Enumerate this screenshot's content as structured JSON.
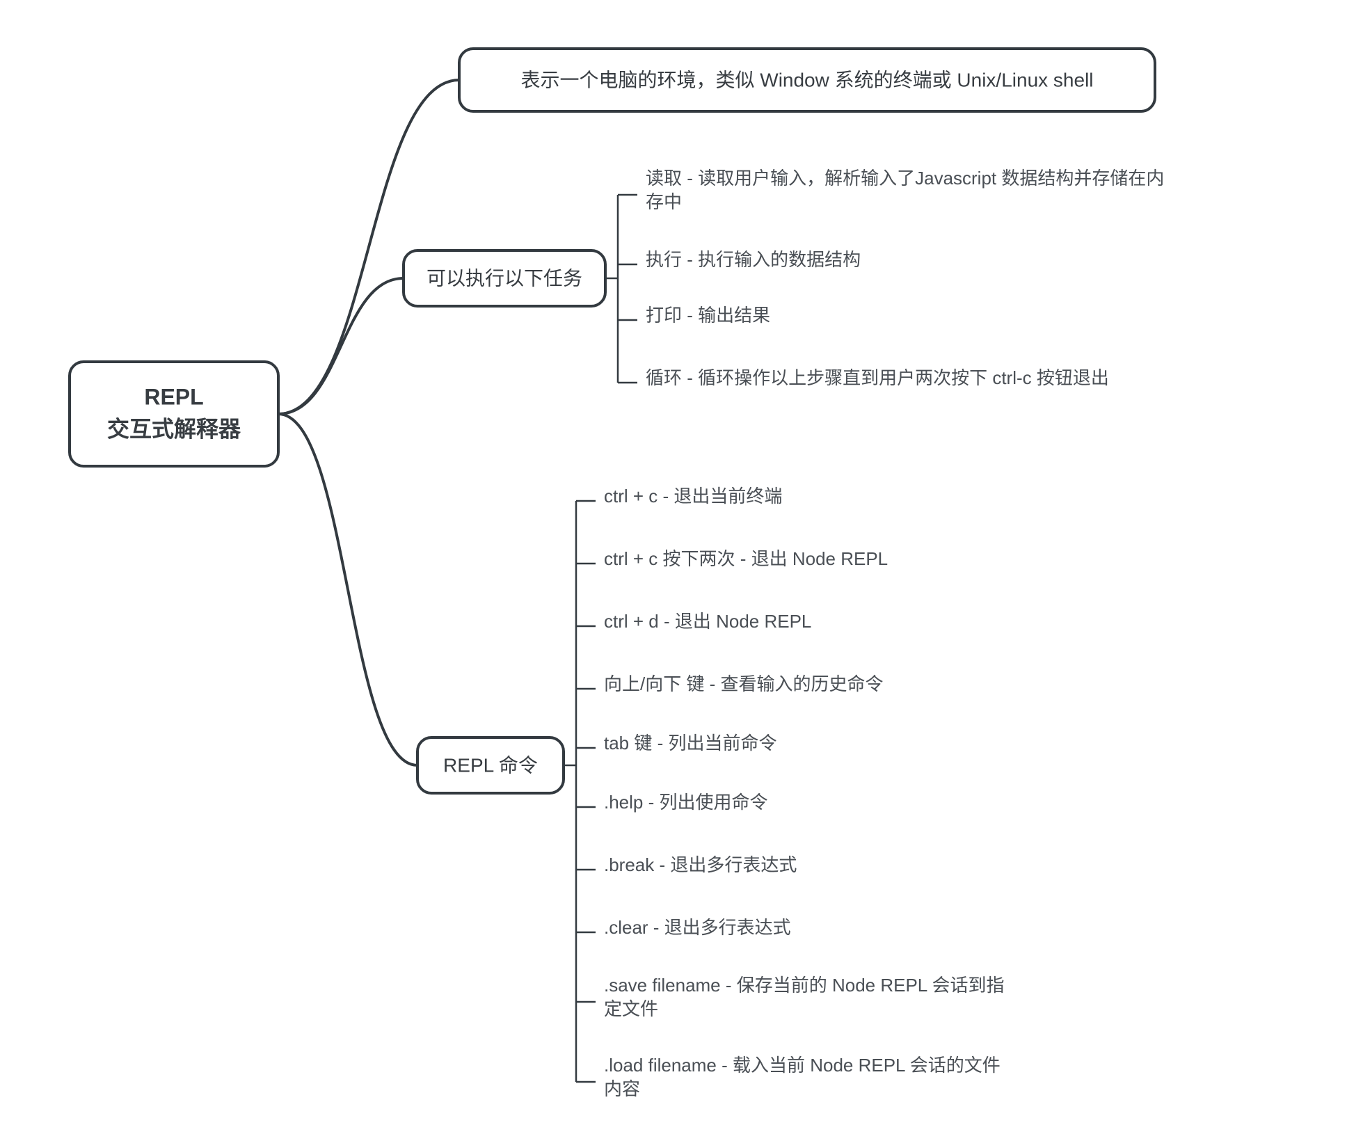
{
  "diagram": {
    "type": "tree",
    "background_color": "#ffffff",
    "node_stroke_color": "#333a40",
    "node_fill_color": "#ffffff",
    "edge_color": "#333a40",
    "bracket_color": "#333a40",
    "text_color": "#383d42",
    "leaf_text_color": "#4a4f55",
    "root_fontsize": 32,
    "root_fontweight": "700",
    "branch_fontsize": 28,
    "leaf_fontsize": 26,
    "node_border_radius": 20,
    "node_stroke_width": 4,
    "edge_stroke_width": 4,
    "root": {
      "line1": "REPL",
      "line2": "交互式解释器"
    },
    "branches": [
      {
        "id": "env",
        "label": "表示一个电脑的环境，类似 Window 系统的终端或 Unix/Linux shell",
        "leaves": []
      },
      {
        "id": "tasks",
        "label": "可以执行以下任务",
        "leaves": [
          "读取 - 读取用户输入，解析输入了Javascript 数据结构并存储在内存中",
          "执行 - 执行输入的数据结构",
          "打印 - 输出结果",
          "循环 - 循环操作以上步骤直到用户两次按下 ctrl-c 按钮退出"
        ]
      },
      {
        "id": "commands",
        "label": "REPL 命令",
        "leaves": [
          "ctrl + c - 退出当前终端",
          "ctrl + c 按下两次 - 退出 Node REPL",
          "ctrl + d - 退出 Node REPL",
          "向上/向下 键 - 查看输入的历史命令",
          "tab 键 - 列出当前命令",
          ".help - 列出使用命令",
          ".break - 退出多行表达式",
          ".clear - 退出多行表达式",
          ".save filename - 保存当前的 Node REPL 会话到指定文件",
          ".load filename - 载入当前 Node REPL 会话的文件内容"
        ]
      }
    ]
  },
  "watermark": ""
}
